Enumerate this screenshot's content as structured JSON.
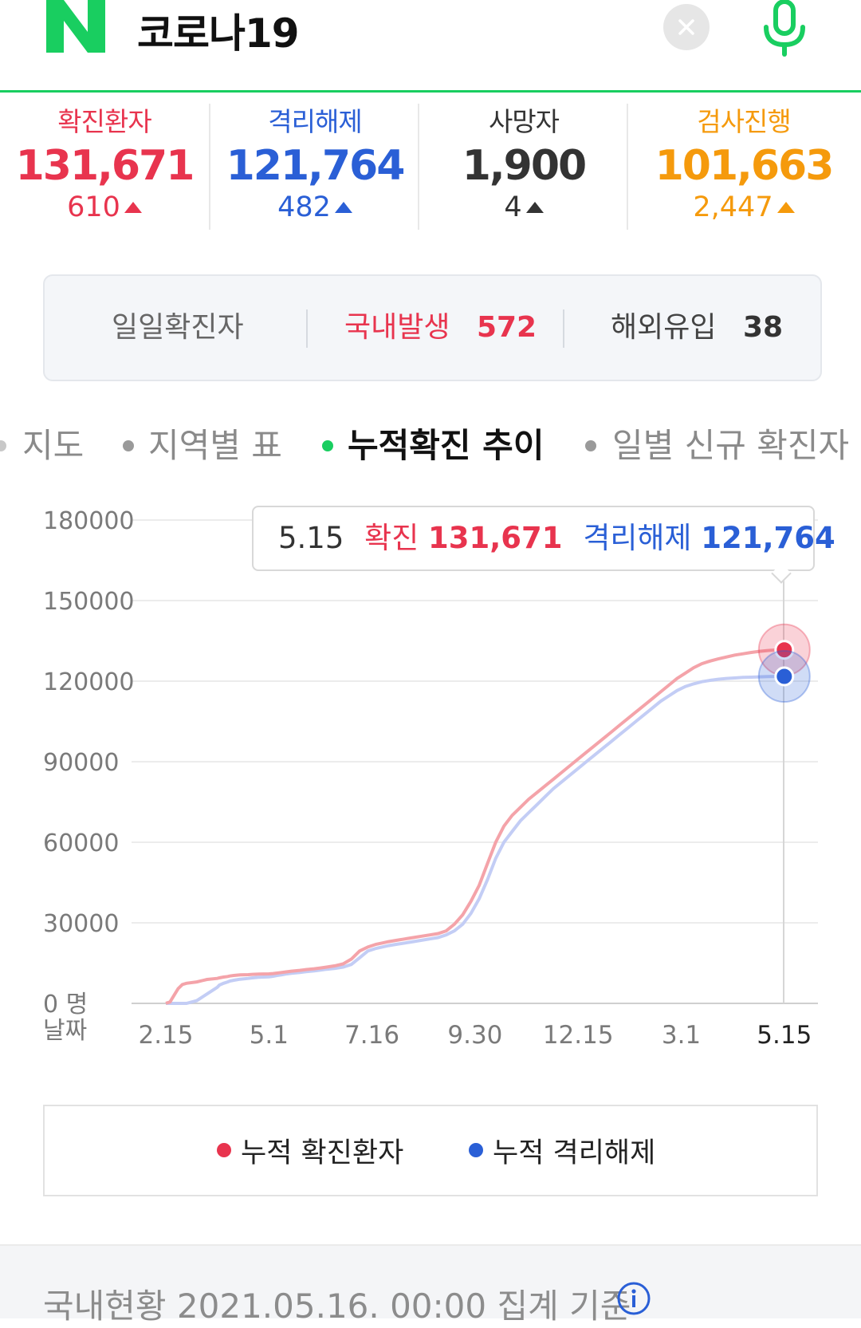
{
  "search": {
    "query": "코로나19",
    "logo_letter": "N"
  },
  "icons": {
    "logo": "naver-logo-icon",
    "clear": "close-icon",
    "mic": "microphone-icon",
    "info": "info-icon",
    "increase": "triangle-up-icon"
  },
  "colors": {
    "confirmed": "#e8344e",
    "released": "#2a5fd6",
    "deaths": "#333333",
    "testing": "#f59a0c",
    "brand": "#19ce60"
  },
  "stats": [
    {
      "label": "확진환자",
      "value": "131,671",
      "change": "610"
    },
    {
      "label": "격리해제",
      "value": "121,764",
      "change": "482"
    },
    {
      "label": "사망자",
      "value": "1,900",
      "change": "4"
    },
    {
      "label": "검사진행",
      "value": "101,663",
      "change": "2,447"
    }
  ],
  "daily": {
    "label": "일일확진자",
    "domestic_label": "국내발생",
    "domestic_value": "572",
    "overseas_label": "해외유입",
    "overseas_value": "38"
  },
  "tabs": [
    {
      "label": "지도"
    },
    {
      "label": "지역별 표"
    },
    {
      "label": "누적확진 추이",
      "active": true
    },
    {
      "label": "일별 신규 확진자"
    }
  ],
  "tooltip": {
    "date": "5.15",
    "confirmed_label": "확진",
    "confirmed_value": "131,671",
    "released_label": "격리해제",
    "released_value": "121,764"
  },
  "chart_data": {
    "type": "line",
    "y_ticks": [
      "180000",
      "150000",
      "120000",
      "90000",
      "60000",
      "30000",
      "0 명"
    ],
    "x_axis_label": "날짜",
    "ylim": [
      0,
      180000
    ],
    "categories": [
      "2.15",
      "5.1",
      "7.16",
      "9.30",
      "12.15",
      "3.1",
      "5.15"
    ],
    "x": [
      0,
      0.04,
      0.08,
      0.12,
      0.16,
      0.2,
      0.3,
      0.4,
      0.5,
      0.52,
      0.56,
      0.6,
      0.62,
      0.66,
      0.72,
      0.8,
      0.84,
      0.9,
      1.0,
      1.04,
      1.08,
      1.12,
      1.16,
      1.22,
      1.3,
      1.36,
      1.44,
      1.5,
      1.56,
      1.64,
      1.72,
      1.8,
      1.88,
      1.96,
      2.04,
      2.1,
      2.16,
      2.24,
      2.32,
      2.4,
      2.48,
      2.56,
      2.64,
      2.72,
      2.8,
      2.88,
      2.96,
      3.04,
      3.12,
      3.2,
      3.28,
      3.36,
      3.44,
      3.52,
      3.6,
      3.68,
      3.76,
      3.84,
      3.92,
      4.0,
      4.08,
      4.16,
      4.24,
      4.32,
      4.4,
      4.48,
      4.56,
      4.64,
      4.72,
      4.8,
      4.88,
      4.96,
      5.04,
      5.12,
      5.2,
      5.28,
      5.36,
      5.44,
      5.52,
      5.6,
      5.68,
      5.76,
      5.84,
      5.92,
      6.0
    ],
    "series": [
      {
        "name": "누적 확진환자",
        "values": [
          30,
          500,
          3000,
          5500,
          7000,
          7500,
          8000,
          8900,
          9300,
          9500,
          9800,
          10000,
          10200,
          10400,
          10600,
          10700,
          10800,
          10900,
          11000,
          11100,
          11300,
          11500,
          11700,
          12000,
          12300,
          12600,
          12900,
          13200,
          13500,
          14000,
          14700,
          16500,
          19500,
          21000,
          22000,
          22500,
          23000,
          23500,
          24000,
          24500,
          25000,
          25500,
          26000,
          27000,
          29500,
          33000,
          38000,
          44000,
          52000,
          60000,
          66000,
          70000,
          73000,
          76000,
          78500,
          81000,
          83500,
          86000,
          88500,
          91000,
          93500,
          96000,
          98500,
          101000,
          103500,
          106000,
          108500,
          111000,
          113500,
          116000,
          118500,
          121000,
          123000,
          125000,
          126500,
          127500,
          128300,
          129000,
          129700,
          130200,
          130700,
          131100,
          131400,
          131600,
          131671
        ]
      },
      {
        "name": "누적 격리해제",
        "values": [
          0,
          0,
          0,
          0,
          0,
          0,
          1000,
          3500,
          6000,
          6800,
          7500,
          8000,
          8300,
          8600,
          9000,
          9300,
          9500,
          9700,
          9900,
          10100,
          10400,
          10600,
          10900,
          11200,
          11500,
          11800,
          12100,
          12400,
          12700,
          13000,
          13500,
          14500,
          17000,
          19500,
          20500,
          21000,
          21500,
          22000,
          22500,
          23000,
          23500,
          24000,
          24500,
          25500,
          27000,
          29500,
          33500,
          39000,
          46000,
          54000,
          60000,
          64000,
          68000,
          71000,
          74000,
          77000,
          80000,
          82500,
          85000,
          87500,
          90000,
          92500,
          95000,
          97500,
          100000,
          102500,
          105000,
          107500,
          110000,
          112500,
          114500,
          116500,
          118000,
          119000,
          119800,
          120300,
          120700,
          121000,
          121200,
          121400,
          121500,
          121600,
          121700,
          121740,
          121764
        ]
      }
    ]
  },
  "legend": [
    {
      "label": "누적 확진환자"
    },
    {
      "label": "누적 격리해제"
    }
  ],
  "footer": {
    "text": "국내현황 2021.05.16. 00:00 집계 기준"
  }
}
